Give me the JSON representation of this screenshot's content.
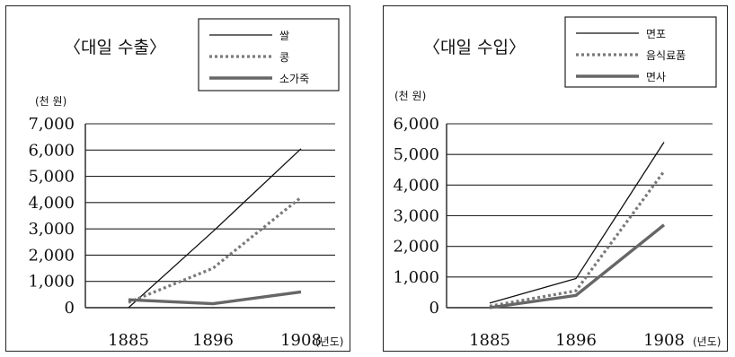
{
  "chart_data": [
    {
      "type": "line",
      "title": "〈대일 수출〉",
      "unit_label": "(천 원)",
      "x": [
        "1885",
        "1896",
        "1908"
      ],
      "x_unit": "(년도)",
      "ylim": [
        0,
        7000
      ],
      "y_ticks": [
        "0",
        "1,000",
        "2,000",
        "3,000",
        "4,000",
        "5,000",
        "6,000",
        "7,000"
      ],
      "grid": "horizontal",
      "legend_position": "top-right",
      "series": [
        {
          "name": "쌀",
          "values": [
            0,
            2900,
            6050
          ],
          "style": "thin",
          "color": "#111111"
        },
        {
          "name": "콩",
          "values": [
            200,
            1500,
            4200
          ],
          "style": "dotted",
          "color": "#7a7a7a"
        },
        {
          "name": "소가죽",
          "values": [
            300,
            150,
            600
          ],
          "style": "thick",
          "color": "#666666"
        }
      ]
    },
    {
      "type": "line",
      "title": "〈대일 수입〉",
      "unit_label": "(천 원)",
      "x": [
        "1885",
        "1896",
        "1908"
      ],
      "x_unit": "(년도)",
      "ylim": [
        0,
        6000
      ],
      "y_ticks": [
        "0",
        "1,000",
        "2,000",
        "3,000",
        "4,000",
        "5,000",
        "6,000"
      ],
      "grid": "horizontal",
      "legend_position": "top-right",
      "series": [
        {
          "name": "면포",
          "values": [
            150,
            950,
            5400
          ],
          "style": "thin",
          "color": "#111111"
        },
        {
          "name": "음식료품",
          "values": [
            50,
            550,
            4450
          ],
          "style": "dotted",
          "color": "#7a7a7a"
        },
        {
          "name": "면사",
          "values": [
            0,
            400,
            2700
          ],
          "style": "thick",
          "color": "#666666"
        }
      ]
    }
  ]
}
